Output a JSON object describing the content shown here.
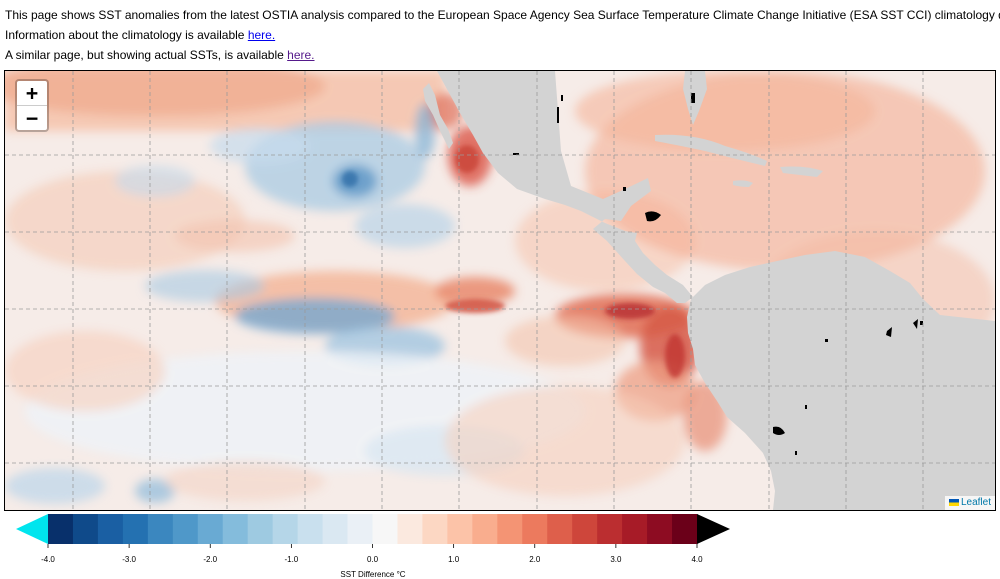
{
  "intro": {
    "line1": "This page shows SST anomalies from the latest OSTIA analysis compared to the European Space Agency Sea Surface Temperature Climate Change Initiative (ESA SST CCI) climatology data.",
    "line2_text": "Information about the climatology is available ",
    "line2_link": "here.",
    "line3_text": "A similar page, but showing actual SSTs, is available ",
    "line3_link": "here."
  },
  "map": {
    "zoom_in": "+",
    "zoom_out": "−",
    "attribution": "Leaflet",
    "land_color": "#d3d3d3",
    "grid_color": "#9a9a9a"
  },
  "colorbar": {
    "ticks": [
      "-4.0",
      "-3.0",
      "-2.0",
      "-1.0",
      "0.0",
      "1.0",
      "2.0",
      "3.0",
      "4.0"
    ],
    "label": "SST Difference °C",
    "min": -4.0,
    "max": 4.0,
    "under_color": "#00e5ee",
    "over_color": "#000000",
    "colors": [
      "#08306b",
      "#0f4a8a",
      "#1a5fa3",
      "#2471b1",
      "#3b87bf",
      "#4f98c9",
      "#69aad3",
      "#84bcdc",
      "#9ecae1",
      "#b5d6e8",
      "#c9e0ee",
      "#dae8f2",
      "#eaf0f6",
      "#f7f7f7",
      "#fbe9df",
      "#fcd7c3",
      "#fcc3a8",
      "#f9ad8e",
      "#f49474",
      "#ec7a5e",
      "#de5f4b",
      "#ce463b",
      "#bb2e30",
      "#a71b27",
      "#8d0c22",
      "#6b0019"
    ]
  }
}
